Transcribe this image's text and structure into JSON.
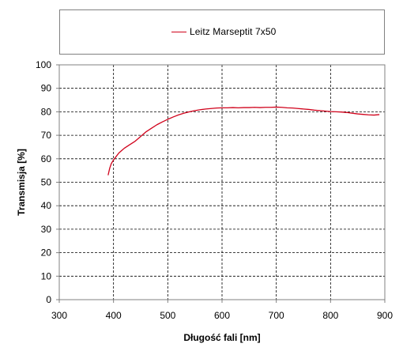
{
  "chart_data": {
    "type": "line",
    "xlabel": "Długość fali [nm]",
    "ylabel": "Transmisja [%]",
    "xlim": [
      300,
      900
    ],
    "ylim": [
      0,
      100
    ],
    "xticks": [
      300,
      400,
      500,
      600,
      700,
      800,
      900
    ],
    "yticks": [
      0,
      10,
      20,
      30,
      40,
      50,
      60,
      70,
      80,
      90,
      100
    ],
    "grid": true,
    "grid_style": "dashed",
    "legend_position": "top",
    "series": [
      {
        "name": "Leitz Marseptit 7x50",
        "color": "#d0021b",
        "x": [
          390,
          393,
          396,
          400,
          405,
          410,
          415,
          420,
          430,
          440,
          450,
          460,
          470,
          480,
          490,
          500,
          510,
          520,
          530,
          540,
          550,
          560,
          570,
          580,
          590,
          600,
          610,
          620,
          630,
          640,
          650,
          660,
          670,
          680,
          690,
          700,
          710,
          720,
          730,
          740,
          750,
          760,
          770,
          780,
          790,
          800,
          810,
          820,
          830,
          840,
          850,
          860,
          870,
          880,
          890
        ],
        "y": [
          53,
          56,
          58,
          59.5,
          61,
          62.5,
          63.5,
          64.5,
          66,
          67.5,
          69.5,
          71.5,
          73,
          74.5,
          75.7,
          76.8,
          77.8,
          78.7,
          79.4,
          80,
          80.5,
          80.9,
          81.2,
          81.4,
          81.6,
          81.7,
          81.7,
          81.8,
          81.7,
          81.8,
          81.8,
          81.9,
          81.8,
          81.9,
          81.9,
          82,
          81.9,
          81.7,
          81.6,
          81.4,
          81.2,
          81,
          80.7,
          80.5,
          80.3,
          80.1,
          80,
          79.9,
          79.7,
          79.4,
          79.1,
          78.9,
          78.7,
          78.6,
          78.8
        ]
      }
    ]
  }
}
